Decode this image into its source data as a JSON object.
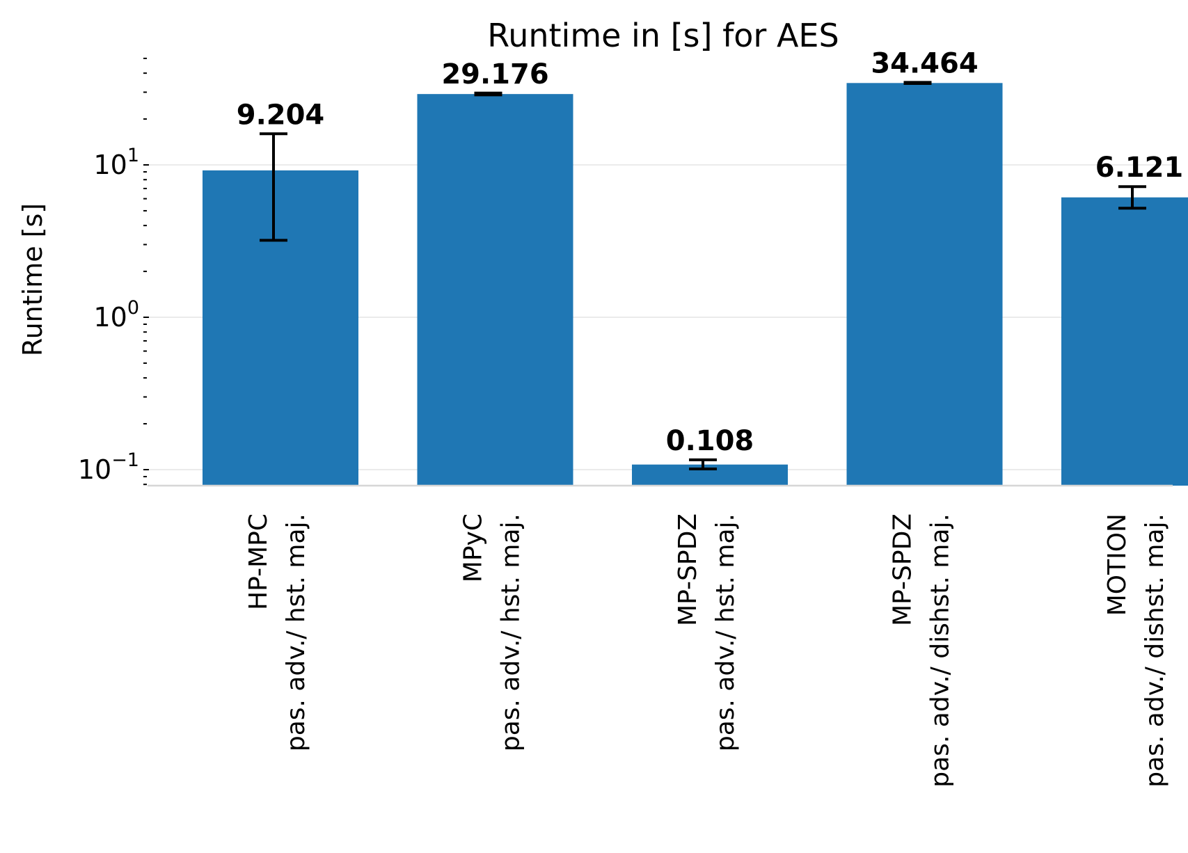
{
  "chart_data": {
    "type": "bar",
    "title": "Runtime in [s] for AES",
    "ylabel": "Runtime [s]",
    "xlabel": "",
    "yscale": "log",
    "ylim": [
      0.08,
      50
    ],
    "grid": "y-major",
    "bar_color": "#1f77b4",
    "categories": [
      {
        "line1": "HP-MPC",
        "line2": "pas. adv./ hst. maj."
      },
      {
        "line1": "MPyC",
        "line2": "pas. adv./ hst. maj."
      },
      {
        "line1": "MP-SPDZ",
        "line2": "pas. adv./ hst. maj."
      },
      {
        "line1": "MP-SPDZ",
        "line2": "pas. adv./ dishst. maj."
      },
      {
        "line1": "MOTION",
        "line2": "pas. adv./ dishst. maj."
      }
    ],
    "values": [
      9.204,
      29.176,
      0.108,
      34.464,
      6.121
    ],
    "value_labels": [
      "9.204",
      "29.176",
      "0.108",
      "34.464",
      "6.121"
    ],
    "error_low": [
      3.2,
      28.8,
      0.101,
      34.2,
      5.2
    ],
    "error_high": [
      16.0,
      29.6,
      0.116,
      34.8,
      7.2
    ],
    "yticks": [
      {
        "value": 0.1,
        "base": "10",
        "exp": "−1"
      },
      {
        "value": 1,
        "base": "10",
        "exp": "0"
      },
      {
        "value": 10,
        "base": "10",
        "exp": "1"
      }
    ]
  }
}
